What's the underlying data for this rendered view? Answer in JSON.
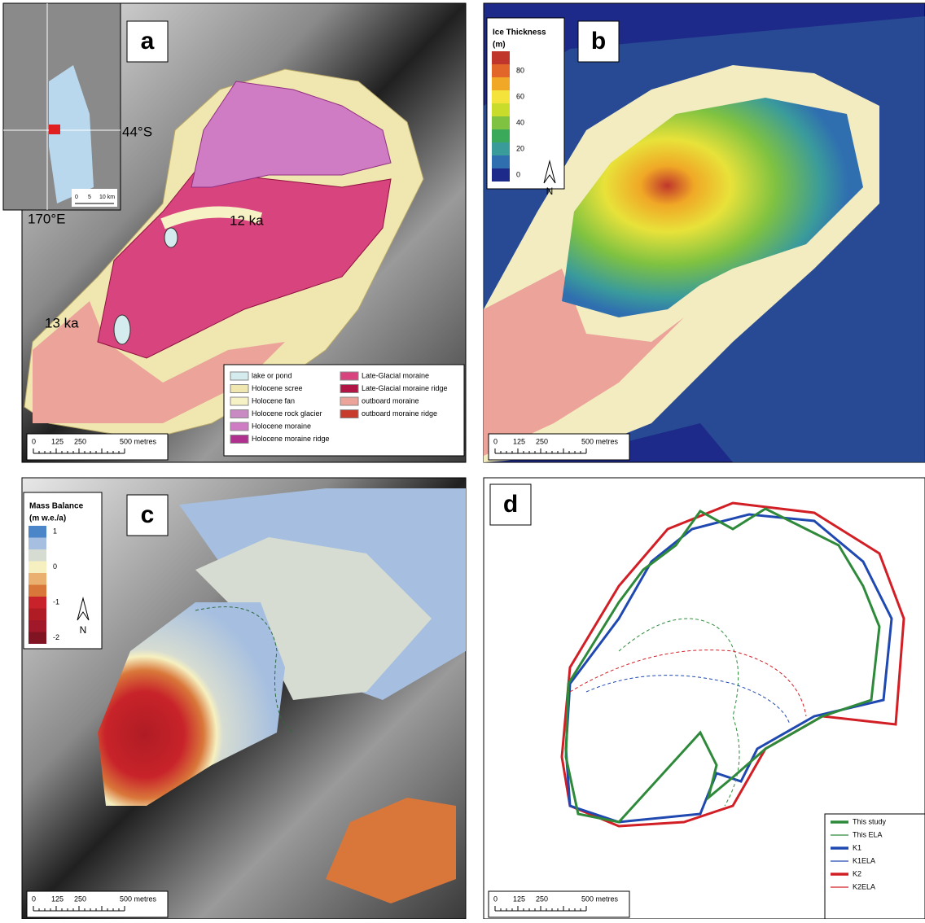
{
  "panels": {
    "a": {
      "label": "a",
      "inset": {
        "lat": "44°S",
        "lon": "170°E",
        "scale": [
          "0",
          "5",
          "10 km"
        ]
      },
      "annotations": [
        "12 ka",
        "13 ka"
      ],
      "scale": [
        "0",
        "125",
        "250",
        "500 metres"
      ],
      "legend": [
        {
          "label": "lake or pond",
          "color": "#d4ecee"
        },
        {
          "label": "Holocene scree",
          "color": "#efe6b0"
        },
        {
          "label": "Holocene fan",
          "color": "#f7f1c6"
        },
        {
          "label": "Holocene rock glacier",
          "color": "#c98ac4"
        },
        {
          "label": "Holocene moraine",
          "color": "#d07cc4"
        },
        {
          "label": "Holocene moraine ridge",
          "color": "#b0308f"
        },
        {
          "label": "Late-Glacial moraine",
          "color": "#d8457e"
        },
        {
          "label": "Late-Glacial moraine ridge",
          "color": "#b01545"
        },
        {
          "label": "outboard moraine",
          "color": "#eba39a"
        },
        {
          "label": "outboard moraine ridge",
          "color": "#c83c2c"
        }
      ]
    },
    "b": {
      "label": "b",
      "legend_title": [
        "Ice Thickness",
        "(m)"
      ],
      "north": "N",
      "scale": [
        "0",
        "125",
        "250",
        "500 metres"
      ],
      "legend": [
        {
          "label": null,
          "color": "#c0362c"
        },
        {
          "label": "80",
          "color": "#e2662a"
        },
        {
          "label": null,
          "color": "#f0a826"
        },
        {
          "label": "60",
          "color": "#f3e33b"
        },
        {
          "label": null,
          "color": "#c9dc2b"
        },
        {
          "label": "40",
          "color": "#7fc241"
        },
        {
          "label": null,
          "color": "#3aaa5a"
        },
        {
          "label": "20",
          "color": "#3a9b9b"
        },
        {
          "label": null,
          "color": "#2f6fb0"
        },
        {
          "label": "0",
          "color": "#1e2a8a"
        }
      ]
    },
    "c": {
      "label": "c",
      "legend_title": [
        "Mass Balance",
        "(m w.e./a)"
      ],
      "north": "N",
      "scale": [
        "0",
        "125",
        "250",
        "500 metres"
      ],
      "legend": [
        {
          "label": "1",
          "color": "#4a86c8"
        },
        {
          "label": null,
          "color": "#a6bfe0"
        },
        {
          "label": null,
          "color": "#d6dcd2"
        },
        {
          "label": "0",
          "color": "#f6f0c0"
        },
        {
          "label": null,
          "color": "#eab070"
        },
        {
          "label": null,
          "color": "#d9773a"
        },
        {
          "label": "-1",
          "color": "#c8232a"
        },
        {
          "label": null,
          "color": "#b01c24"
        },
        {
          "label": null,
          "color": "#a0182a"
        },
        {
          "label": "-2",
          "color": "#801422"
        }
      ]
    },
    "d": {
      "label": "d",
      "scale": [
        "0",
        "125",
        "250",
        "500 metres"
      ],
      "legend": [
        {
          "label": "This study",
          "color": "#2e8a3a",
          "width": 3.5,
          "dash": false
        },
        {
          "label": "This ELA",
          "color": "#2e8a3a",
          "width": 1.2,
          "dash": false
        },
        {
          "label": "K1",
          "color": "#1f48b0",
          "width": 3.5,
          "dash": false
        },
        {
          "label": "K1ELA",
          "color": "#1f48b0",
          "width": 1.2,
          "dash": false
        },
        {
          "label": "K2",
          "color": "#d21f26",
          "width": 3.5,
          "dash": false
        },
        {
          "label": "K2ELA",
          "color": "#d21f26",
          "width": 1.2,
          "dash": false
        }
      ]
    }
  }
}
